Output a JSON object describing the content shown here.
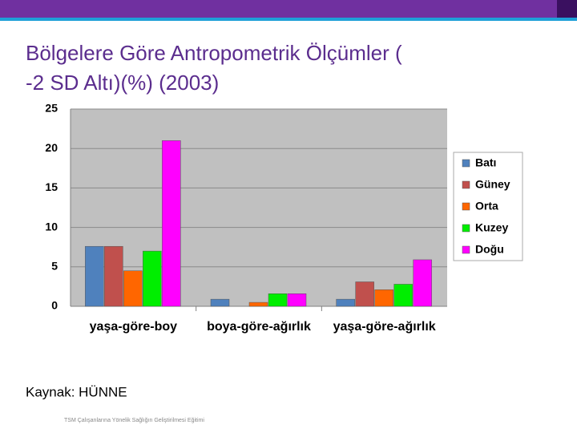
{
  "slide": {
    "title_lines": [
      "Bölgelere Göre Antropometrik Ölçümler (",
      "-2 SD Altı)(%) (2003)"
    ],
    "source": "Kaynak: HÜNNE",
    "footer": "TSM Çalışanlarına Yönelik Sağlığın Geliştirilmesi Eğitimi"
  },
  "chart_data": {
    "type": "bar",
    "categories": [
      "yaşa-göre-boy",
      "boya-göre-ağırlık",
      "yaşa-göre-ağırlık"
    ],
    "series": [
      {
        "name": "Batı",
        "color": "#4f81bd",
        "values": [
          7.6,
          0.9,
          0.9
        ]
      },
      {
        "name": "Güney",
        "color": "#c0504d",
        "values": [
          7.6,
          0,
          3.1
        ]
      },
      {
        "name": "Orta",
        "color": "#ff6600",
        "values": [
          4.5,
          0.5,
          2.1
        ]
      },
      {
        "name": "Kuzey",
        "color": "#00ee00",
        "values": [
          7.0,
          1.6,
          2.8
        ]
      },
      {
        "name": "Doğu",
        "color": "#ff00ff",
        "values": [
          21.0,
          1.6,
          5.9
        ]
      }
    ],
    "ylim": [
      0,
      25
    ],
    "yticks": [
      0,
      5,
      10,
      15,
      20,
      25
    ],
    "grid": true,
    "legend": "right"
  }
}
